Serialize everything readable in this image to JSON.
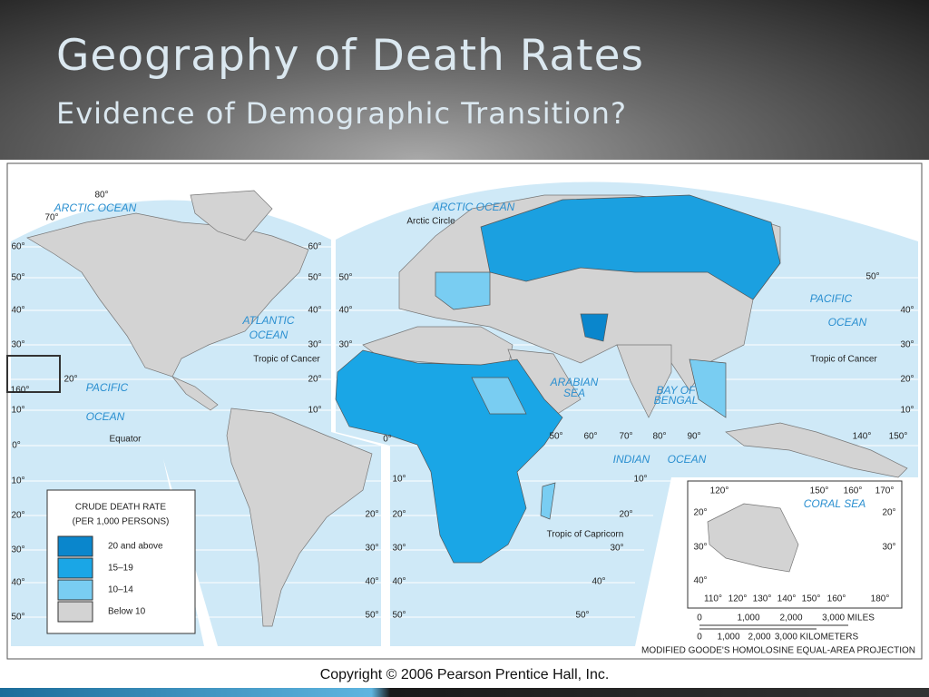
{
  "header": {
    "title": "Geography of Death Rates",
    "subtitle": "Evidence of Demographic Transition?"
  },
  "map": {
    "labels": [
      "80°",
      "70°",
      "60°",
      "50°",
      "40°",
      "30°",
      "20°",
      "160°",
      "10°",
      "0°",
      "10°",
      "20°",
      "30°",
      "40°",
      "50°",
      "60°",
      "50°",
      "40°",
      "30°",
      "20°",
      "10°",
      "50°",
      "40°",
      "30°",
      "50°",
      "40°",
      "30°",
      "20°",
      "10°",
      "140°",
      "150°",
      "0°",
      "50°",
      "60°",
      "70°",
      "80°",
      "90°",
      "10°",
      "20°",
      "30°",
      "40°",
      "50°",
      "20°",
      "30°",
      "40°",
      "50°",
      "10°",
      "20°",
      "30°",
      "40°",
      "50°",
      "ARCTIC OCEAN",
      "ARCTIC OCEAN",
      "Arctic Circle",
      "ATLANTIC",
      "OCEAN",
      "PACIFIC",
      "OCEAN",
      "Equator",
      "Tropic of Cancer",
      "PACIFIC",
      "OCEAN",
      "Tropic of Cancer",
      "ARABIAN",
      "SEA",
      "BAY OF",
      "BENGAL",
      "INDIAN",
      "OCEAN",
      "Tropic of Capricorn"
    ],
    "inset_labels": [
      "120°",
      "150°",
      "160°",
      "170°",
      "CORAL SEA",
      "20°",
      "20°",
      "30°",
      "30°",
      "40°",
      "110°",
      "120°",
      "130°",
      "140°",
      "150°",
      "160°",
      "180°"
    ],
    "scale": {
      "miles": [
        "0",
        "1,000",
        "2,000",
        "3,000 MILES"
      ],
      "kilometers": [
        "0",
        "1,000",
        "2,000",
        "3,000 KILOMETERS"
      ]
    },
    "projection": "MODIFIED GOODE'S HOMOLOSINE EQUAL-AREA PROJECTION"
  },
  "legend": {
    "title": [
      "CRUDE DEATH RATE",
      "(PER 1,000 PERSONS)"
    ],
    "items": [
      "20 and above",
      "15–19",
      "10–14",
      "Below 10"
    ]
  },
  "footer": {
    "copyright": "Copyright © 2006 Pearson Prentice Hall, Inc."
  }
}
